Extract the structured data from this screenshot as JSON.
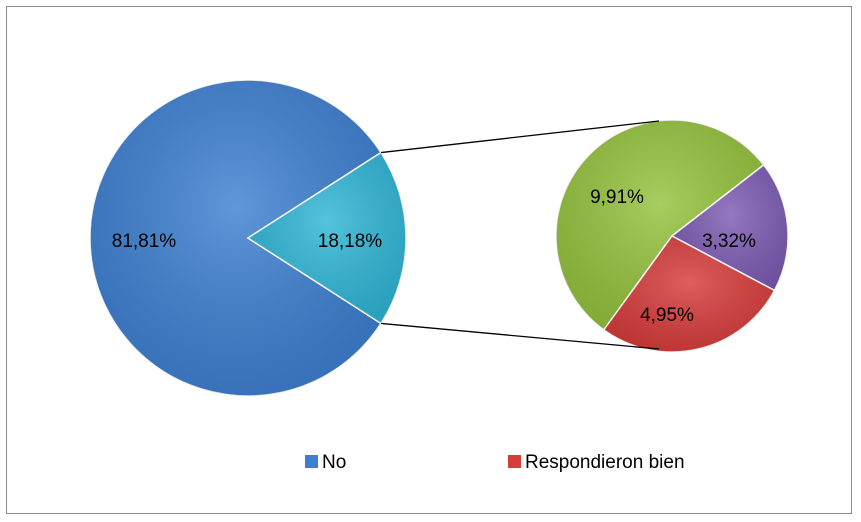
{
  "chart_data": {
    "type": "pie",
    "subtype": "pie-of-pie",
    "title": "",
    "main_pie": {
      "slices": [
        {
          "label": "81,81%",
          "value": 81.81,
          "color": "#3d7fd1"
        },
        {
          "label": "18,18%",
          "value": 18.18,
          "color": "#2fb6d6",
          "exploded_to_secondary": true
        }
      ]
    },
    "secondary_pie": {
      "slices": [
        {
          "label": "9,91%",
          "value": 9.91,
          "color": "#95c23d"
        },
        {
          "label": "3,32%",
          "value": 3.32,
          "color": "#7d5cb4"
        },
        {
          "label": "4,95%",
          "value": 4.95,
          "color": "#d63c3a"
        }
      ]
    },
    "legend": {
      "placement": "bottom",
      "items": [
        {
          "label": "No",
          "color": "#3d7fd1"
        },
        {
          "label": "Respondieron bien",
          "color": "#d63c3a"
        }
      ]
    }
  }
}
